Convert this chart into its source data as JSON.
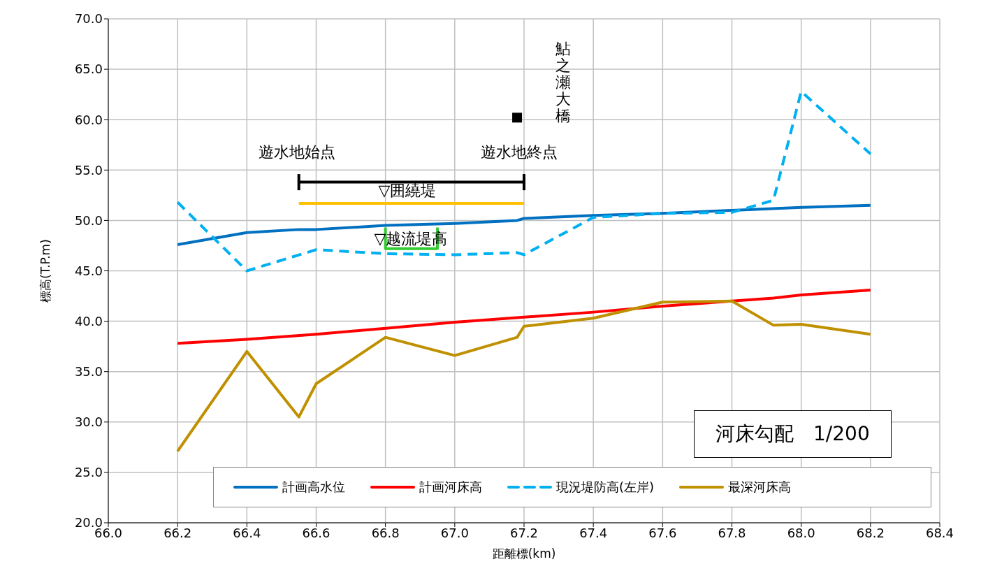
{
  "chart_data": {
    "type": "line",
    "xlabel": "距離標(km)",
    "ylabel": "標高(T.P.m)",
    "xlim": [
      66.0,
      68.4
    ],
    "xticks": [
      {
        "value": 66.0,
        "label": "66.0"
      },
      {
        "value": 66.2,
        "label": "66.2"
      },
      {
        "value": 66.4,
        "label": "66.4"
      },
      {
        "value": 66.6,
        "label": "66.6"
      },
      {
        "value": 66.8,
        "label": "66.8"
      },
      {
        "value": 67.0,
        "label": "67.0"
      },
      {
        "value": 67.2,
        "label": "67.2"
      },
      {
        "value": 67.4,
        "label": "67.4"
      },
      {
        "value": 67.6,
        "label": "67.6"
      },
      {
        "value": 67.8,
        "label": "67.8"
      },
      {
        "value": 68.0,
        "label": "68.0"
      },
      {
        "value": 68.2,
        "label": "68.2"
      },
      {
        "value": 68.4,
        "label": "68.4"
      }
    ],
    "ylim": [
      20,
      70
    ],
    "yticks": [
      {
        "value": 20,
        "label": "20.0"
      },
      {
        "value": 25,
        "label": "25.0"
      },
      {
        "value": 30,
        "label": "30.0"
      },
      {
        "value": 35,
        "label": "35.0"
      },
      {
        "value": 40,
        "label": "40.0"
      },
      {
        "value": 45,
        "label": "45.0"
      },
      {
        "value": 50,
        "label": "50.0"
      },
      {
        "value": 55,
        "label": "55.0"
      },
      {
        "value": 60,
        "label": "60.0"
      },
      {
        "value": 65,
        "label": "65.0"
      },
      {
        "value": 70,
        "label": "70.0"
      }
    ],
    "grid": true,
    "legend": "bottom",
    "marker": "none",
    "series": [
      {
        "name": "計画高水位",
        "color": "#0070c0",
        "line_style": "solid",
        "x": [
          66.2,
          66.4,
          66.55,
          66.6,
          66.8,
          67.0,
          67.18,
          67.2,
          67.4,
          67.6,
          67.8,
          68.0,
          68.2
        ],
        "values": [
          47.6,
          48.8,
          49.1,
          49.1,
          49.5,
          49.7,
          50.0,
          50.2,
          50.5,
          50.7,
          51.0,
          51.3,
          51.5
        ]
      },
      {
        "name": "計画河床高",
        "color": "#ff0000",
        "line_style": "solid",
        "x": [
          66.2,
          66.4,
          66.6,
          66.8,
          67.0,
          67.2,
          67.4,
          67.6,
          67.8,
          67.92,
          68.0,
          68.2
        ],
        "values": [
          37.8,
          38.2,
          38.7,
          39.3,
          39.9,
          40.4,
          40.9,
          41.5,
          42.0,
          42.3,
          42.6,
          43.1
        ]
      },
      {
        "name": "現況堤防高(左岸)",
        "color": "#00b0f0",
        "line_style": "dashed",
        "x": [
          66.2,
          66.4,
          66.6,
          66.8,
          67.0,
          67.18,
          67.2,
          67.4,
          67.6,
          67.8,
          67.92,
          68.0,
          68.2
        ],
        "values": [
          51.8,
          45.0,
          47.1,
          46.7,
          46.6,
          46.8,
          46.6,
          50.3,
          50.7,
          50.8,
          52.0,
          62.8,
          56.6
        ]
      },
      {
        "name": "最深河床高",
        "color": "#bf9000",
        "line_style": "solid",
        "x": [
          66.2,
          66.4,
          66.55,
          66.6,
          66.8,
          67.0,
          67.18,
          67.2,
          67.4,
          67.6,
          67.8,
          67.92,
          68.0,
          68.2
        ],
        "values": [
          27.1,
          37.0,
          30.5,
          33.8,
          38.4,
          36.6,
          38.4,
          39.5,
          40.3,
          41.9,
          42.0,
          39.6,
          39.7,
          38.7
        ]
      },
      {
        "color": "#ffc000",
        "line_style": "solid",
        "x": [
          66.55,
          67.2
        ],
        "values": [
          51.7,
          51.7
        ]
      },
      {
        "color": "#33cc33",
        "line_style": "solid",
        "x": [
          66.8,
          66.8,
          66.95,
          66.95
        ],
        "values": [
          49.3,
          47.2,
          47.2,
          49.3
        ]
      },
      {
        "color": "#000000",
        "line_style": "solid",
        "x": [
          66.55,
          67.2
        ],
        "values": [
          53.8,
          53.8
        ]
      },
      {
        "color": "#000000",
        "line_style": "solid",
        "x": [
          66.55,
          66.55
        ],
        "values": [
          53.0,
          54.6
        ]
      },
      {
        "color": "#000000",
        "line_style": "solid",
        "x": [
          67.2,
          67.2
        ],
        "values": [
          53.0,
          54.6
        ]
      },
      {
        "type": "scatter",
        "marker": "square",
        "color": "#000000",
        "x": [
          67.18
        ],
        "values": [
          60.2
        ]
      }
    ],
    "annotations": [
      "遊水地始点",
      "遊水地終点",
      "▽囲繞堤",
      "▽越流堤高",
      "鮎之瀬大橋",
      "河床勾配　1/200"
    ]
  }
}
